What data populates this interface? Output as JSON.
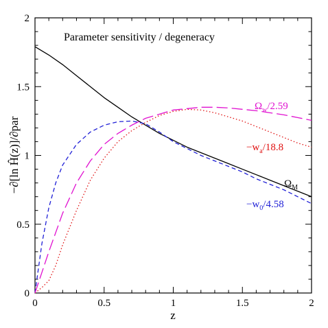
{
  "chart_data": {
    "type": "line",
    "title": "Parameter sensitivity / degeneracy",
    "xlabel": "z",
    "ylabel": "−∂[ln Ĥ(z)]/∂par",
    "xlim": [
      0,
      2
    ],
    "ylim": [
      0,
      2
    ],
    "x_ticks": [
      {
        "value": 0,
        "label": "0"
      },
      {
        "value": 0.5,
        "label": "0.5"
      },
      {
        "value": 1,
        "label": "1"
      },
      {
        "value": 1.5,
        "label": "1.5"
      },
      {
        "value": 2,
        "label": "2"
      }
    ],
    "y_ticks": [
      {
        "value": 0,
        "label": "0"
      },
      {
        "value": 0.5,
        "label": "0.5"
      },
      {
        "value": 1,
        "label": "1"
      },
      {
        "value": 1.5,
        "label": "1.5"
      },
      {
        "value": 2,
        "label": "2"
      }
    ],
    "grid": false,
    "legend": "curve labels placed next to each curve",
    "series": [
      {
        "key": "omega_m",
        "label": {
          "prefix": "Ω",
          "sub": "M",
          "suffix": ""
        },
        "color": "#000000",
        "dash": "solid",
        "x": [
          0,
          0.1,
          0.2,
          0.3,
          0.4,
          0.5,
          0.6,
          0.7,
          0.8,
          0.9,
          1.0,
          1.1,
          1.2,
          1.3,
          1.4,
          1.5,
          1.6,
          1.7,
          1.8,
          1.9,
          2.0
        ],
        "y": [
          1.79,
          1.73,
          1.66,
          1.58,
          1.5,
          1.42,
          1.35,
          1.28,
          1.22,
          1.16,
          1.11,
          1.06,
          1.02,
          0.98,
          0.94,
          0.9,
          0.86,
          0.82,
          0.78,
          0.74,
          0.7
        ]
      },
      {
        "key": "w0",
        "label": {
          "prefix": "−w",
          "sub": "0",
          "suffix": "/4.58"
        },
        "color": "#1f1fd6",
        "dash": "short",
        "x": [
          0,
          0.05,
          0.1,
          0.15,
          0.2,
          0.3,
          0.4,
          0.5,
          0.6,
          0.7,
          0.8,
          0.9,
          1.0,
          1.1,
          1.2,
          1.3,
          1.4,
          1.5,
          1.6,
          1.7,
          1.8,
          1.9,
          2.0
        ],
        "y": [
          0,
          0.36,
          0.62,
          0.8,
          0.93,
          1.08,
          1.17,
          1.22,
          1.245,
          1.25,
          1.23,
          1.17,
          1.1,
          1.05,
          1.0,
          0.96,
          0.92,
          0.88,
          0.83,
          0.79,
          0.75,
          0.7,
          0.65
        ]
      },
      {
        "key": "wa",
        "label": {
          "prefix": "−w",
          "sub": "a",
          "suffix": "/18.8"
        },
        "color": "#e01010",
        "dash": "dotted",
        "x": [
          0,
          0.05,
          0.1,
          0.15,
          0.2,
          0.3,
          0.4,
          0.5,
          0.6,
          0.7,
          0.8,
          0.9,
          1.0,
          1.1,
          1.2,
          1.3,
          1.4,
          1.5,
          1.6,
          1.7,
          1.8,
          1.9,
          2.0
        ],
        "y": [
          0,
          0.04,
          0.09,
          0.2,
          0.35,
          0.6,
          0.82,
          0.98,
          1.1,
          1.18,
          1.24,
          1.29,
          1.32,
          1.335,
          1.33,
          1.31,
          1.28,
          1.25,
          1.21,
          1.17,
          1.13,
          1.09,
          1.06
        ]
      },
      {
        "key": "omega_w",
        "label": {
          "prefix": "Ω",
          "sub": "w",
          "suffix": "/2.59"
        },
        "color": "#e010d0",
        "dash": "long",
        "x": [
          0,
          0.05,
          0.1,
          0.2,
          0.3,
          0.4,
          0.5,
          0.6,
          0.7,
          0.8,
          0.9,
          1.0,
          1.1,
          1.2,
          1.3,
          1.4,
          1.5,
          1.6,
          1.7,
          1.8,
          1.9,
          2.0
        ],
        "y": [
          0,
          0.15,
          0.3,
          0.58,
          0.8,
          0.96,
          1.08,
          1.16,
          1.22,
          1.27,
          1.3,
          1.33,
          1.34,
          1.35,
          1.35,
          1.345,
          1.335,
          1.325,
          1.31,
          1.295,
          1.275,
          1.255
        ]
      }
    ]
  }
}
